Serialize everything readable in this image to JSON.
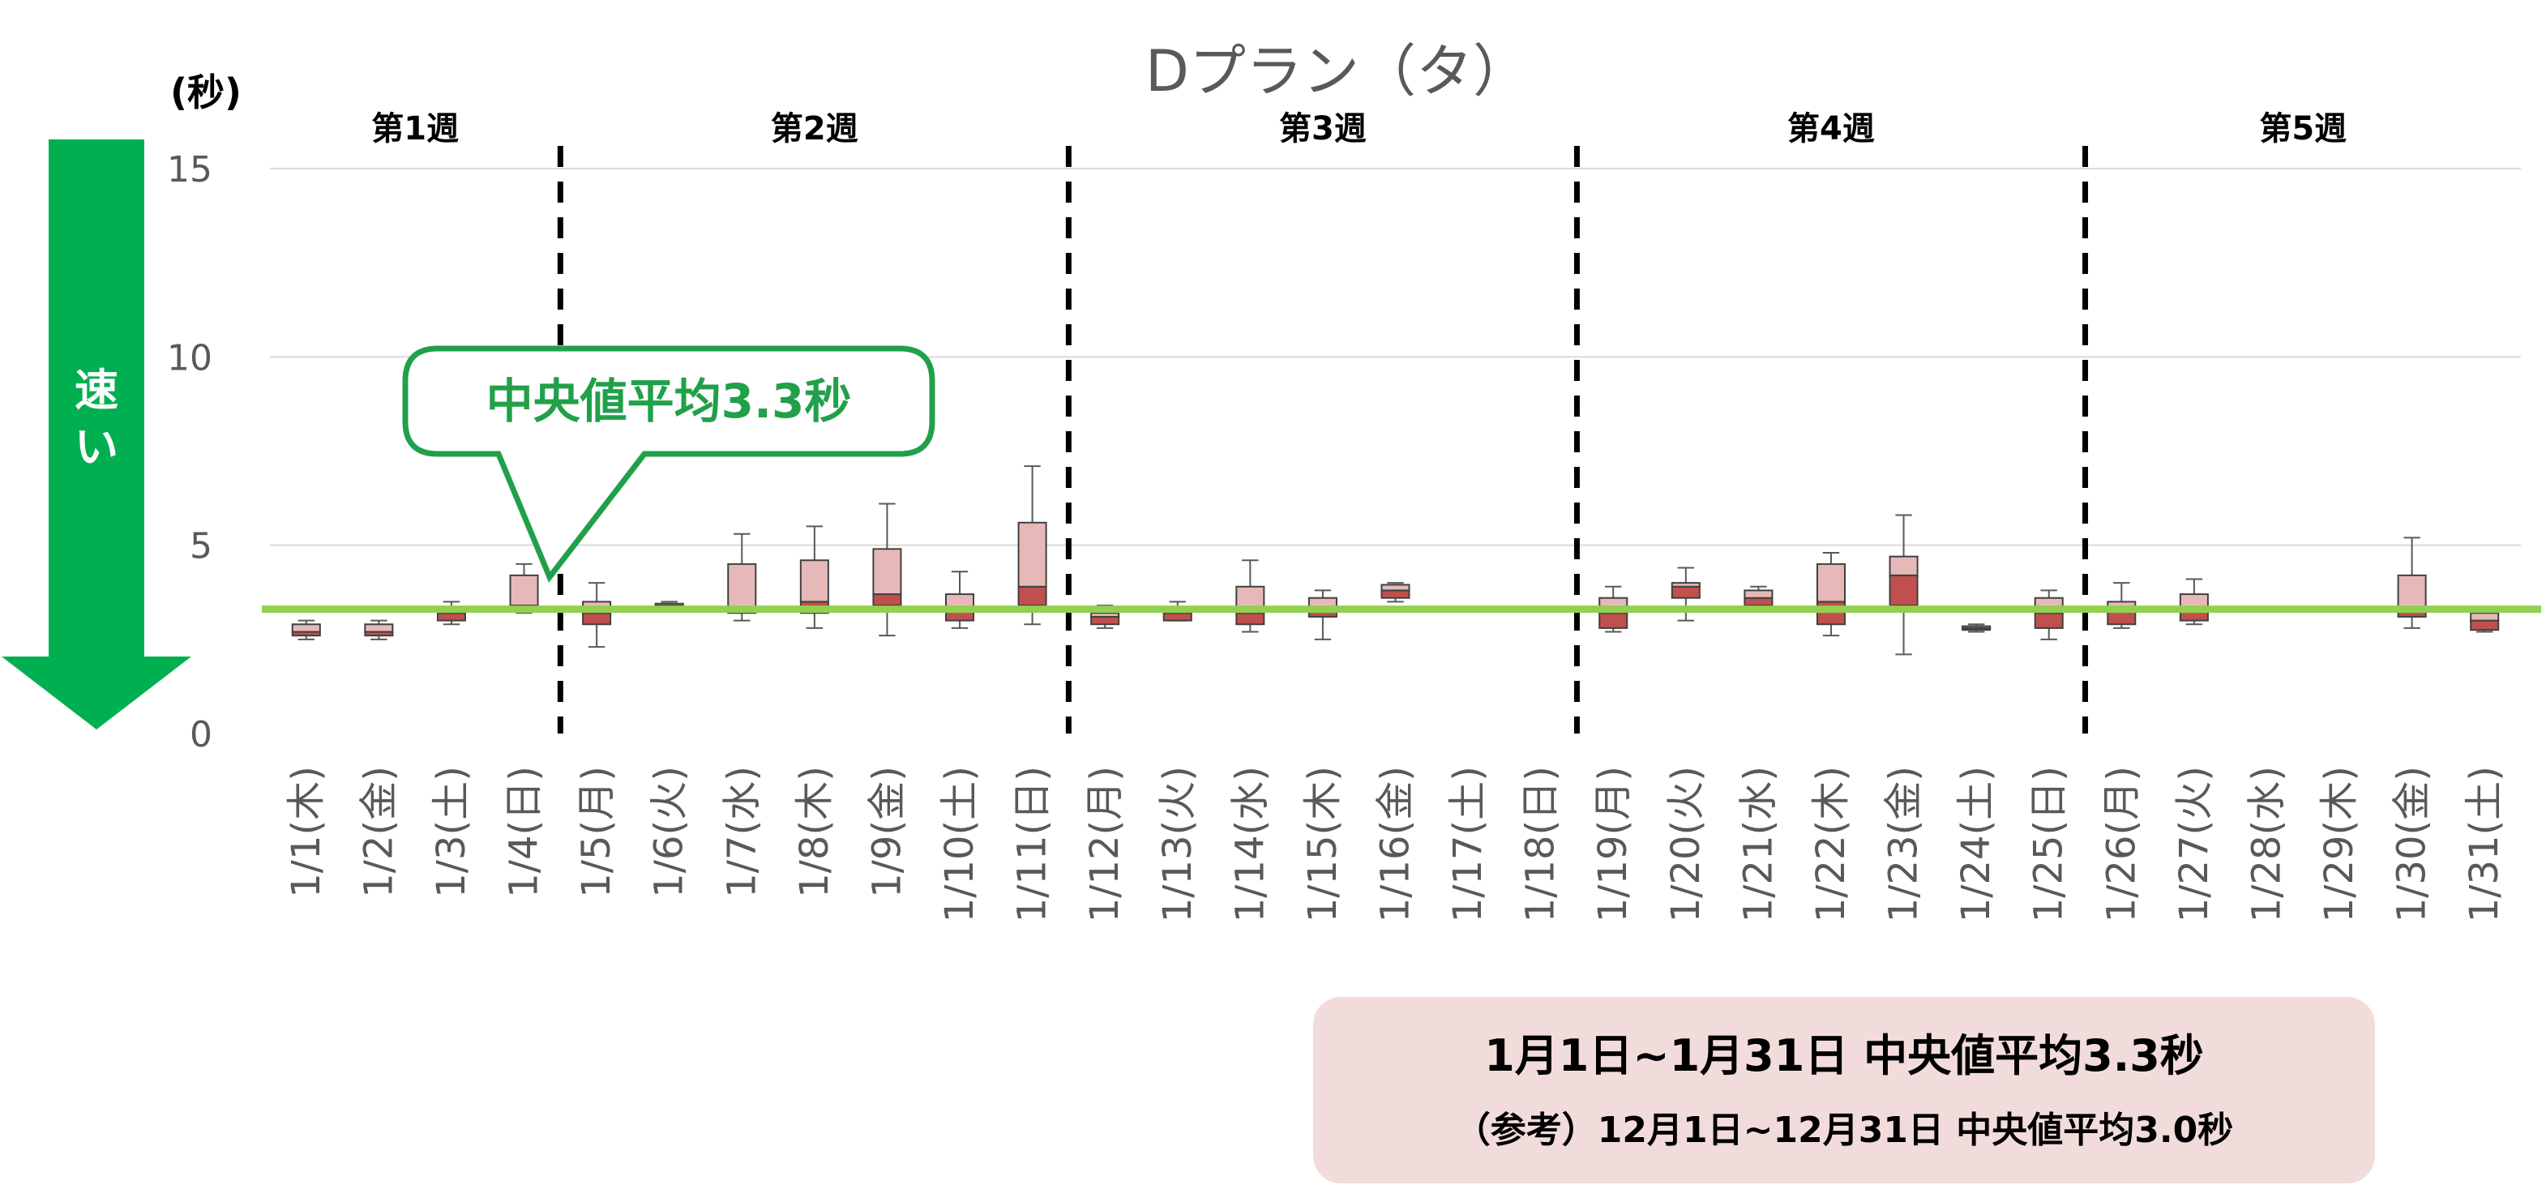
{
  "chart_data": {
    "type": "box",
    "title": "Dプラン（タ）",
    "unit_label": "(秒)",
    "ylim": [
      0,
      15
    ],
    "yticks": [
      0,
      5,
      10,
      15
    ],
    "grid": true,
    "fast_arrow_label": "速い",
    "median_average": 3.3,
    "callout": "中央値平均3.3秒",
    "weeks": [
      {
        "label": "第1週",
        "days": [
          0,
          3
        ]
      },
      {
        "label": "第2週",
        "days": [
          4,
          10
        ]
      },
      {
        "label": "第3週",
        "days": [
          11,
          17
        ]
      },
      {
        "label": "第4週",
        "days": [
          18,
          24
        ]
      },
      {
        "label": "第5週",
        "days": [
          25,
          30
        ]
      }
    ],
    "week_separators_after_day": [
      3,
      10,
      17,
      24
    ],
    "categories": [
      "1/1(木)",
      "1/2(金)",
      "1/3(土)",
      "1/4(日)",
      "1/5(月)",
      "1/6(火)",
      "1/7(水)",
      "1/8(木)",
      "1/9(金)",
      "1/10(土)",
      "1/11(日)",
      "1/12(月)",
      "1/13(火)",
      "1/14(水)",
      "1/15(木)",
      "1/16(金)",
      "1/17(土)",
      "1/18(日)",
      "1/19(月)",
      "1/20(火)",
      "1/21(水)",
      "1/22(木)",
      "1/23(金)",
      "1/24(土)",
      "1/25(日)",
      "1/26(月)",
      "1/27(火)",
      "1/28(水)",
      "1/29(木)",
      "1/30(金)",
      "1/31(土)"
    ],
    "boxes": [
      {
        "min": 2.5,
        "q1": 2.6,
        "median": 2.7,
        "q3": 2.9,
        "max": 3.0
      },
      {
        "min": 2.5,
        "q1": 2.6,
        "median": 2.7,
        "q3": 2.9,
        "max": 3.0
      },
      {
        "min": 2.9,
        "q1": 3.0,
        "median": 3.2,
        "q3": 3.3,
        "max": 3.5
      },
      {
        "min": 3.2,
        "q1": 3.3,
        "median": 3.4,
        "q3": 4.2,
        "max": 4.5
      },
      {
        "min": 2.3,
        "q1": 2.9,
        "median": 3.2,
        "q3": 3.5,
        "max": 4.0
      },
      {
        "min": 3.3,
        "q1": 3.35,
        "median": 3.4,
        "q3": 3.45,
        "max": 3.5
      },
      {
        "min": 3.0,
        "q1": 3.2,
        "median": 3.3,
        "q3": 4.5,
        "max": 5.3
      },
      {
        "min": 2.8,
        "q1": 3.2,
        "median": 3.5,
        "q3": 4.6,
        "max": 5.5
      },
      {
        "min": 2.6,
        "q1": 3.4,
        "median": 3.7,
        "q3": 4.9,
        "max": 6.1
      },
      {
        "min": 2.8,
        "q1": 3.0,
        "median": 3.3,
        "q3": 3.7,
        "max": 4.3
      },
      {
        "min": 2.9,
        "q1": 3.4,
        "median": 3.9,
        "q3": 5.6,
        "max": 7.1
      },
      {
        "min": 2.8,
        "q1": 2.9,
        "median": 3.1,
        "q3": 3.2,
        "max": 3.4
      },
      {
        "min": 3.0,
        "q1": 3.0,
        "median": 3.2,
        "q3": 3.3,
        "max": 3.5
      },
      {
        "min": 2.7,
        "q1": 2.9,
        "median": 3.2,
        "q3": 3.9,
        "max": 4.6
      },
      {
        "min": 2.5,
        "q1": 3.1,
        "median": 3.3,
        "q3": 3.6,
        "max": 3.8
      },
      {
        "min": 3.5,
        "q1": 3.6,
        "median": 3.8,
        "q3": 3.95,
        "max": 4.0
      },
      null,
      null,
      {
        "min": 2.7,
        "q1": 2.8,
        "median": 3.2,
        "q3": 3.6,
        "max": 3.9
      },
      {
        "min": 3.0,
        "q1": 3.6,
        "median": 3.9,
        "q3": 4.0,
        "max": 4.4
      },
      {
        "min": 3.3,
        "q1": 3.4,
        "median": 3.6,
        "q3": 3.8,
        "max": 3.9
      },
      {
        "min": 2.6,
        "q1": 2.9,
        "median": 3.5,
        "q3": 4.5,
        "max": 4.8
      },
      {
        "min": 2.1,
        "q1": 3.4,
        "median": 4.2,
        "q3": 4.7,
        "max": 5.8
      },
      {
        "min": 2.7,
        "q1": 2.75,
        "median": 2.8,
        "q3": 2.85,
        "max": 2.9
      },
      {
        "min": 2.5,
        "q1": 2.8,
        "median": 3.2,
        "q3": 3.6,
        "max": 3.8
      },
      {
        "min": 2.8,
        "q1": 2.9,
        "median": 3.3,
        "q3": 3.5,
        "max": 4.0
      },
      {
        "min": 2.9,
        "q1": 3.0,
        "median": 3.3,
        "q3": 3.7,
        "max": 4.1
      },
      null,
      null,
      {
        "min": 2.8,
        "q1": 3.1,
        "median": 3.3,
        "q3": 4.2,
        "max": 5.2
      },
      {
        "min": 2.7,
        "q1": 2.75,
        "median": 3.0,
        "q3": 3.2,
        "max": 3.3
      }
    ],
    "colors": {
      "box_upper": "#e6b9b8",
      "box_lower": "#c0504d",
      "median_avg_line": "#92d050",
      "arrow": "#00b050",
      "callout": "#21a04a",
      "summary_bg": "#f2dcdb"
    }
  },
  "summary": {
    "line1": "1月1日~1月31日  中央値平均3.3秒",
    "line2": "（参考）12月1日~12月31日  中央値平均3.0秒"
  }
}
